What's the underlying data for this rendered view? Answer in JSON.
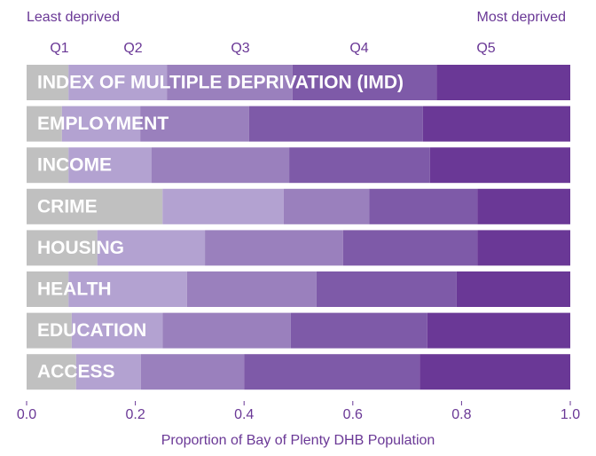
{
  "chart_data": {
    "type": "stacked_barh",
    "annotations": [
      "Least deprived",
      "Most deprived"
    ],
    "x_label": "Proportion of Bay of Plenty DHB Population",
    "categories": [
      "INDEX OF MULTIPLE DEPRIVATION (IMD)",
      "EMPLOYMENT",
      "INCOME",
      "CRIME",
      "HOUSING",
      "HEALTH",
      "EDUCATION",
      "ACCESS"
    ],
    "series": [
      {
        "name": "Q1",
        "color": "#c0c0c0",
        "values": [
          0.077,
          0.065,
          0.077,
          0.25,
          0.13,
          0.077,
          0.083,
          0.091
        ]
      },
      {
        "name": "Q2",
        "color": "#b3a2d1",
        "values": [
          0.181,
          0.144,
          0.153,
          0.223,
          0.198,
          0.218,
          0.167,
          0.119
        ]
      },
      {
        "name": "Q3",
        "color": "#9a80bd",
        "values": [
          0.231,
          0.2,
          0.253,
          0.157,
          0.254,
          0.238,
          0.236,
          0.19
        ]
      },
      {
        "name": "Q4",
        "color": "#7e5aa8",
        "values": [
          0.265,
          0.32,
          0.259,
          0.199,
          0.247,
          0.258,
          0.251,
          0.323
        ]
      },
      {
        "name": "Q5",
        "color": "#6a3896",
        "values": [
          0.246,
          0.271,
          0.258,
          0.171,
          0.171,
          0.209,
          0.263,
          0.277
        ]
      }
    ],
    "xlim": [
      0,
      1
    ],
    "xticks": [
      {
        "value": 0,
        "label": "0.0"
      },
      0.2,
      0.4,
      0.6,
      0.8,
      {
        "value": 1,
        "label": "1.0"
      }
    ]
  }
}
